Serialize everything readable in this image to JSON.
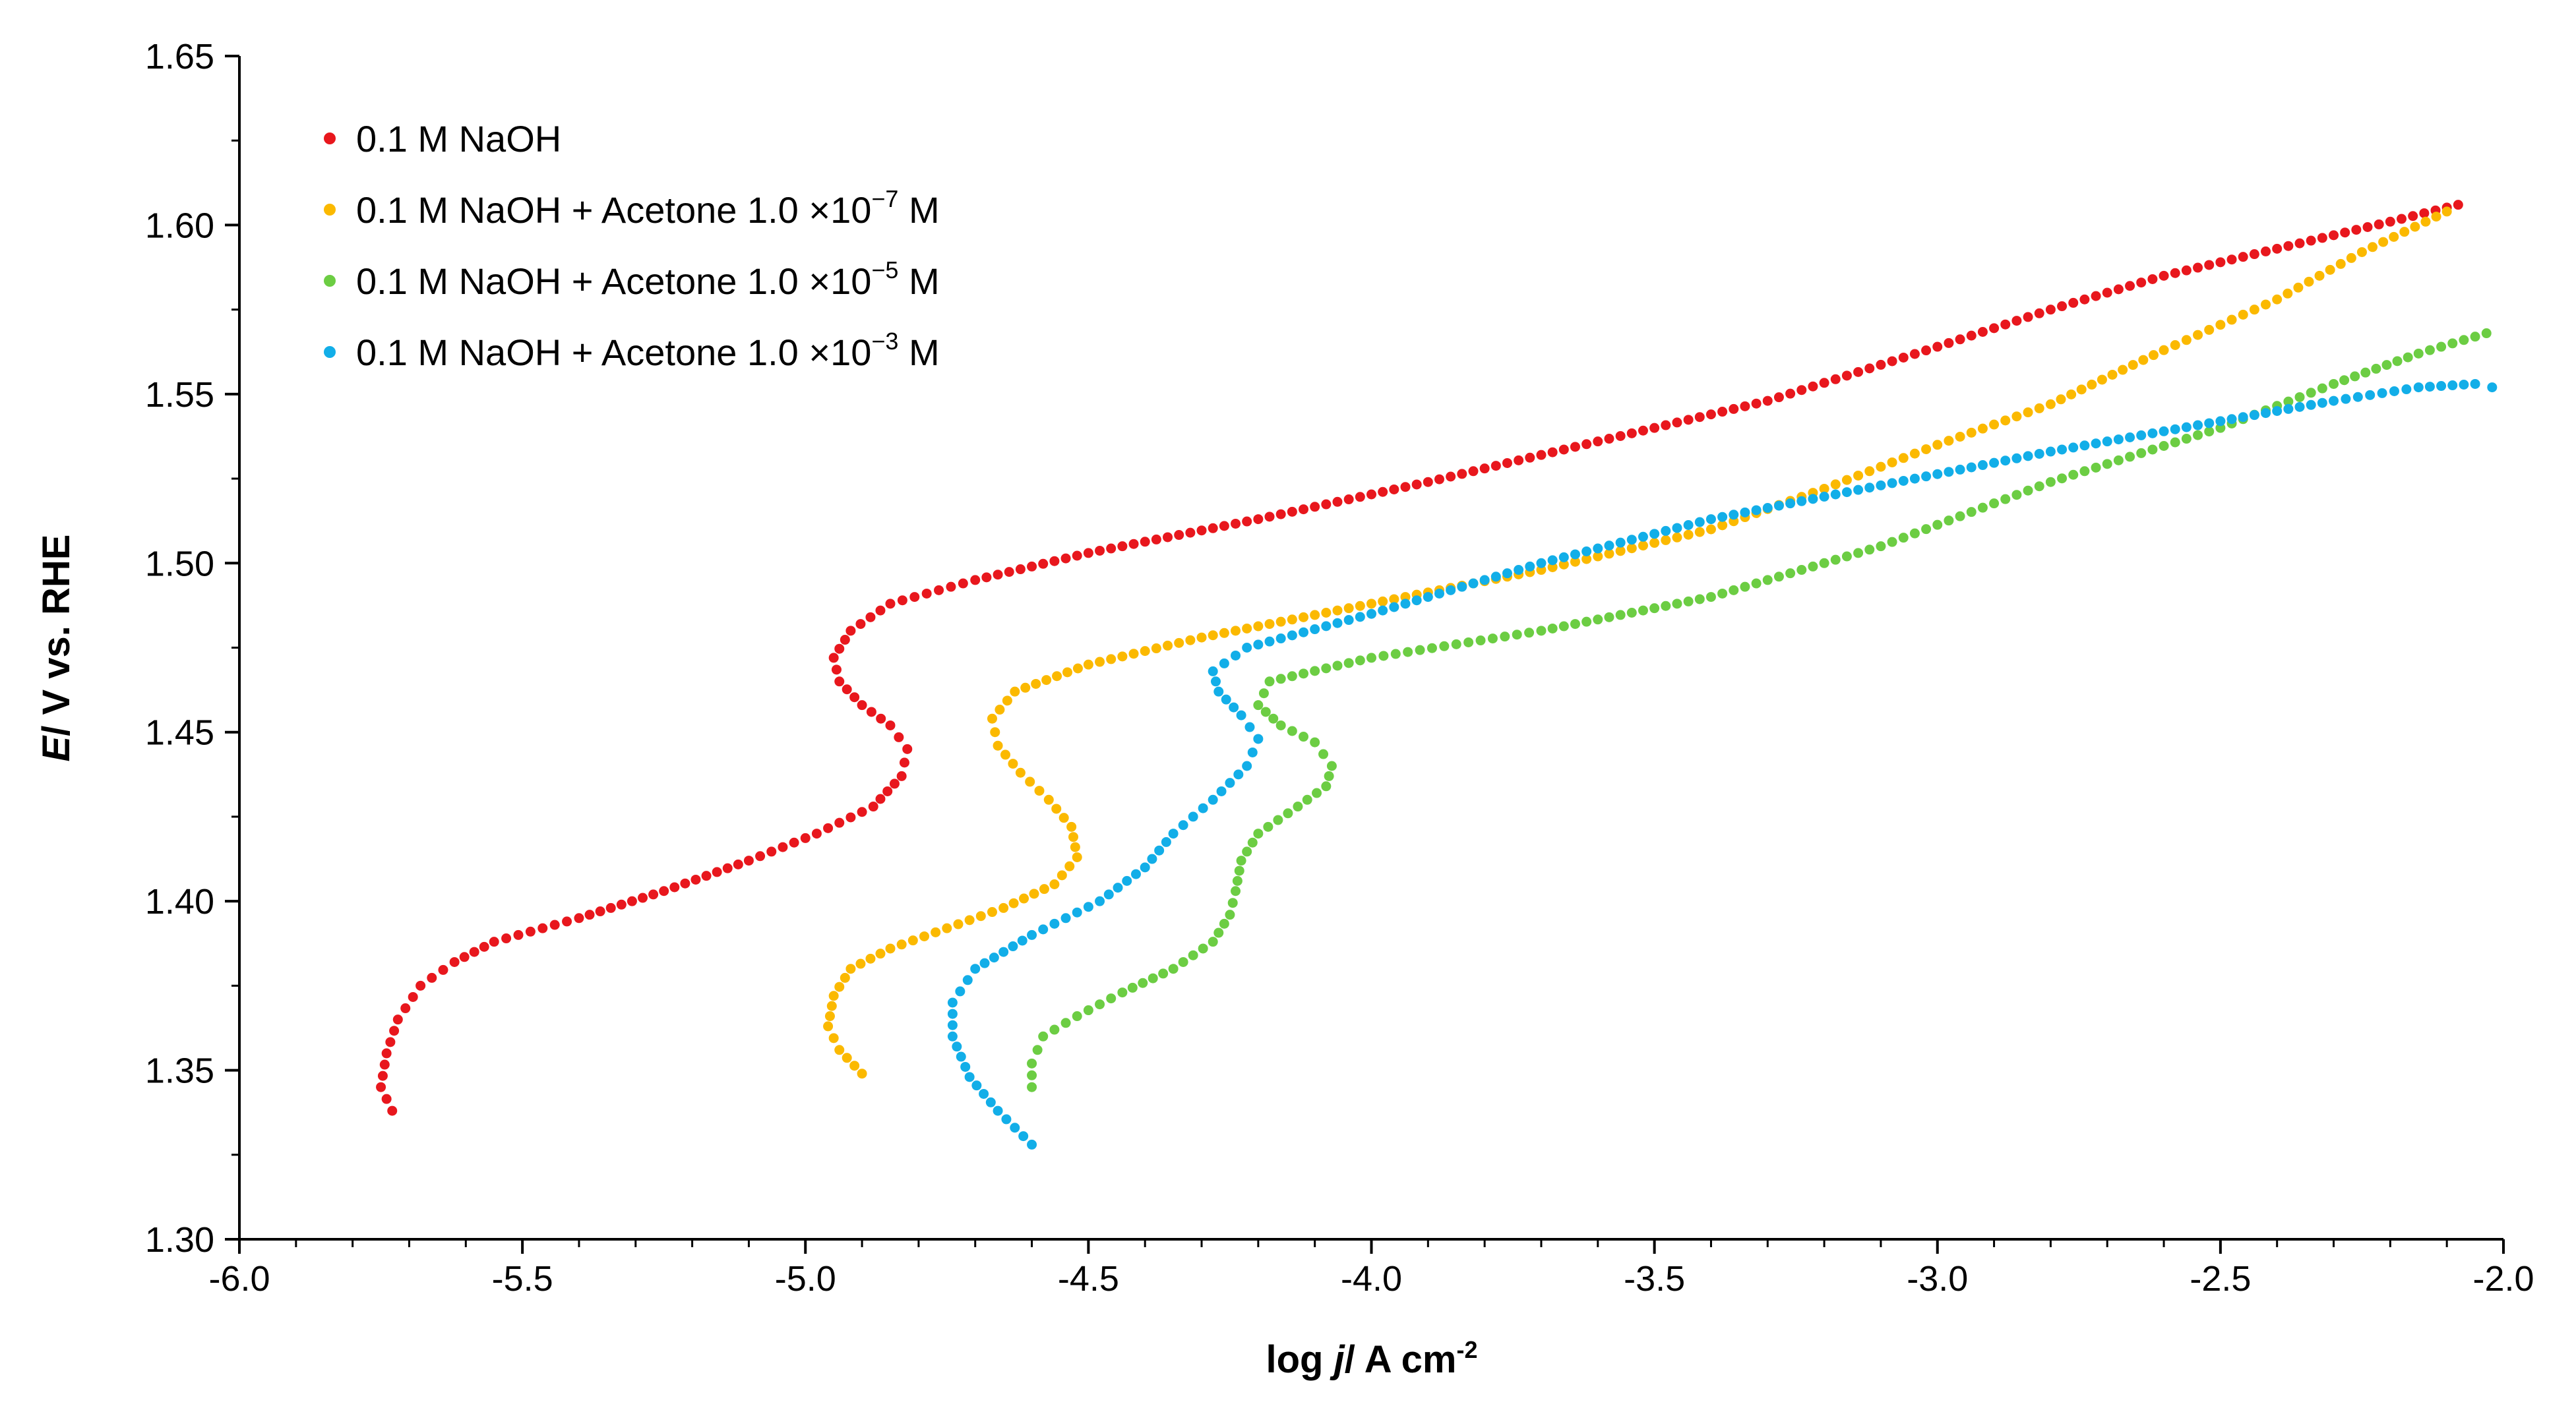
{
  "chart_data": {
    "type": "scatter",
    "xlabel": {
      "prefix": "log ",
      "italic": "j",
      "suffix": "/ A cm",
      "sup": "-2"
    },
    "ylabel": {
      "italic": "E",
      "suffix": "/ V vs. RHE"
    },
    "xlim": [
      -6.0,
      -2.0
    ],
    "ylim": [
      1.3,
      1.65
    ],
    "x_ticks": [
      "-6.0",
      "-5.5",
      "-5.0",
      "-4.5",
      "-4.0",
      "-3.5",
      "-3.0",
      "-2.5",
      "-2.0"
    ],
    "y_ticks": [
      "1.30",
      "1.35",
      "1.40",
      "1.45",
      "1.50",
      "1.55",
      "1.60",
      "1.65"
    ],
    "grid": false,
    "legend_position": "top-left",
    "series": [
      {
        "name": "0.1 M NaOH",
        "legend_parts": {
          "base": "0.1 M NaOH",
          "extra": "",
          "exp": "",
          "unit": ""
        },
        "color": "#e8171d",
        "points": [
          [
            -5.73,
            1.338
          ],
          [
            -5.75,
            1.345
          ],
          [
            -5.74,
            1.355
          ],
          [
            -5.72,
            1.365
          ],
          [
            -5.68,
            1.375
          ],
          [
            -5.62,
            1.382
          ],
          [
            -5.55,
            1.388
          ],
          [
            -5.4,
            1.395
          ],
          [
            -5.25,
            1.403
          ],
          [
            -5.1,
            1.412
          ],
          [
            -4.98,
            1.42
          ],
          [
            -4.88,
            1.428
          ],
          [
            -4.83,
            1.437
          ],
          [
            -4.82,
            1.445
          ],
          [
            -4.85,
            1.452
          ],
          [
            -4.9,
            1.458
          ],
          [
            -4.94,
            1.465
          ],
          [
            -4.95,
            1.472
          ],
          [
            -4.92,
            1.48
          ],
          [
            -4.85,
            1.488
          ],
          [
            -4.7,
            1.495
          ],
          [
            -4.5,
            1.503
          ],
          [
            -4.2,
            1.513
          ],
          [
            -3.9,
            1.524
          ],
          [
            -3.6,
            1.536
          ],
          [
            -3.3,
            1.548
          ],
          [
            -3.0,
            1.564
          ],
          [
            -2.8,
            1.575
          ],
          [
            -2.6,
            1.585
          ],
          [
            -2.4,
            1.593
          ],
          [
            -2.2,
            1.601
          ],
          [
            -2.08,
            1.606
          ]
        ]
      },
      {
        "name": "0.1 M NaOH + Acetone 1.0 ×10^-7 M",
        "legend_parts": {
          "base": "0.1 M NaOH",
          "extra": " +  Acetone 1.0 ×10",
          "exp": "−7",
          "unit": " M"
        },
        "color": "#fbb900",
        "points": [
          [
            -4.9,
            1.349
          ],
          [
            -4.94,
            1.356
          ],
          [
            -4.96,
            1.363
          ],
          [
            -4.95,
            1.372
          ],
          [
            -4.92,
            1.38
          ],
          [
            -4.85,
            1.386
          ],
          [
            -4.75,
            1.392
          ],
          [
            -4.65,
            1.398
          ],
          [
            -4.56,
            1.405
          ],
          [
            -4.52,
            1.413
          ],
          [
            -4.53,
            1.422
          ],
          [
            -4.57,
            1.43
          ],
          [
            -4.62,
            1.438
          ],
          [
            -4.66,
            1.446
          ],
          [
            -4.67,
            1.454
          ],
          [
            -4.63,
            1.462
          ],
          [
            -4.5,
            1.47
          ],
          [
            -4.3,
            1.478
          ],
          [
            -4.0,
            1.488
          ],
          [
            -3.7,
            1.498
          ],
          [
            -3.4,
            1.51
          ],
          [
            -3.2,
            1.522
          ],
          [
            -3.0,
            1.535
          ],
          [
            -2.8,
            1.547
          ],
          [
            -2.6,
            1.563
          ],
          [
            -2.4,
            1.578
          ],
          [
            -2.25,
            1.592
          ],
          [
            -2.1,
            1.604
          ]
        ]
      },
      {
        "name": "0.1 M NaOH + Acetone 1.0 ×10^-5 M",
        "legend_parts": {
          "base": "0.1 M NaOH",
          "extra": " +  Acetone 1.0 ×10",
          "exp": "−5",
          "unit": " M"
        },
        "color": "#6ccd43",
        "points": [
          [
            -4.6,
            1.345
          ],
          [
            -4.6,
            1.352
          ],
          [
            -4.58,
            1.36
          ],
          [
            -4.52,
            1.366
          ],
          [
            -4.44,
            1.373
          ],
          [
            -4.35,
            1.38
          ],
          [
            -4.28,
            1.388
          ],
          [
            -4.25,
            1.396
          ],
          [
            -4.24,
            1.403
          ],
          [
            -4.23,
            1.412
          ],
          [
            -4.2,
            1.42
          ],
          [
            -4.13,
            1.428
          ],
          [
            -4.08,
            1.434
          ],
          [
            -4.07,
            1.44
          ],
          [
            -4.1,
            1.447
          ],
          [
            -4.16,
            1.452
          ],
          [
            -4.2,
            1.458
          ],
          [
            -4.18,
            1.465
          ],
          [
            -4.0,
            1.472
          ],
          [
            -3.7,
            1.48
          ],
          [
            -3.4,
            1.49
          ],
          [
            -3.1,
            1.505
          ],
          [
            -2.8,
            1.524
          ],
          [
            -2.5,
            1.54
          ],
          [
            -2.3,
            1.553
          ],
          [
            -2.15,
            1.562
          ],
          [
            -2.03,
            1.568
          ]
        ]
      },
      {
        "name": "0.1 M NaOH + Acetone 1.0 ×10^-3 M",
        "legend_parts": {
          "base": "0.1 M NaOH",
          "extra": " +  Acetone 1.0 ×10",
          "exp": "−3",
          "unit": " M"
        },
        "color": "#12aee8",
        "points": [
          [
            -4.6,
            1.328
          ],
          [
            -4.66,
            1.338
          ],
          [
            -4.71,
            1.348
          ],
          [
            -4.74,
            1.36
          ],
          [
            -4.74,
            1.37
          ],
          [
            -4.7,
            1.38
          ],
          [
            -4.6,
            1.39
          ],
          [
            -4.48,
            1.4
          ],
          [
            -4.4,
            1.41
          ],
          [
            -4.35,
            1.42
          ],
          [
            -4.28,
            1.43
          ],
          [
            -4.22,
            1.44
          ],
          [
            -4.2,
            1.448
          ],
          [
            -4.23,
            1.455
          ],
          [
            -4.27,
            1.462
          ],
          [
            -4.28,
            1.468
          ],
          [
            -4.22,
            1.475
          ],
          [
            -4.0,
            1.485
          ],
          [
            -3.7,
            1.5
          ],
          [
            -3.4,
            1.513
          ],
          [
            -3.1,
            1.523
          ],
          [
            -2.8,
            1.533
          ],
          [
            -2.5,
            1.542
          ],
          [
            -2.3,
            1.548
          ],
          [
            -2.15,
            1.552
          ],
          [
            -2.05,
            1.553
          ],
          [
            -2.02,
            1.552
          ]
        ]
      }
    ]
  }
}
